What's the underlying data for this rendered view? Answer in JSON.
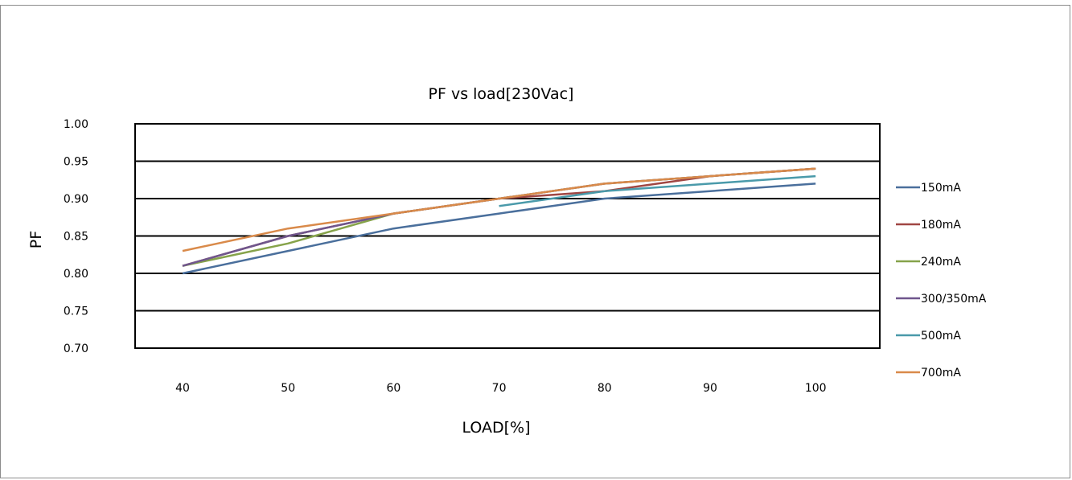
{
  "chart_data": {
    "type": "line",
    "title": "PF vs load[230Vac]",
    "xlabel": "LOAD[%]",
    "ylabel": "PF",
    "categories": [
      40,
      50,
      60,
      70,
      80,
      90,
      100
    ],
    "ylim": [
      0.7,
      1.0
    ],
    "yticks": [
      "1.00",
      "0.95",
      "0.90",
      "0.85",
      "0.80",
      "0.75",
      "0.70"
    ],
    "xticks": [
      "40",
      "50",
      "60",
      "70",
      "80",
      "90",
      "100"
    ],
    "grid": true,
    "legend_position": "right",
    "series": [
      {
        "name": "150mA",
        "color": "#4a6f9c",
        "x": [
          40,
          50,
          60,
          70,
          80,
          90,
          100
        ],
        "values": [
          0.8,
          0.83,
          0.86,
          0.88,
          0.9,
          0.91,
          0.92
        ]
      },
      {
        "name": "180mA",
        "color": "#a04643",
        "x": [
          40,
          50,
          60,
          70,
          80,
          90,
          100
        ],
        "values": [
          0.81,
          0.85,
          0.88,
          0.9,
          0.91,
          0.93,
          0.94
        ]
      },
      {
        "name": "240mA",
        "color": "#86a34a",
        "x": [
          40,
          50,
          60,
          70,
          80,
          90,
          100
        ],
        "values": [
          0.81,
          0.84,
          0.88,
          0.9,
          0.92,
          0.93,
          0.94
        ]
      },
      {
        "name": "300/350mA",
        "color": "#6f568d",
        "x": [
          40,
          50,
          60,
          70,
          80,
          90,
          100
        ],
        "values": [
          0.81,
          0.85,
          0.88,
          0.9,
          0.92,
          0.93,
          0.94
        ]
      },
      {
        "name": "500mA",
        "color": "#4a9aaa",
        "x": [
          70,
          80,
          90,
          100
        ],
        "values": [
          0.89,
          0.91,
          0.92,
          0.93
        ]
      },
      {
        "name": "700mA",
        "color": "#d98a4a",
        "x": [
          40,
          50,
          60,
          70,
          80,
          90,
          100
        ],
        "values": [
          0.83,
          0.86,
          0.88,
          0.9,
          0.92,
          0.93,
          0.94
        ]
      }
    ]
  }
}
